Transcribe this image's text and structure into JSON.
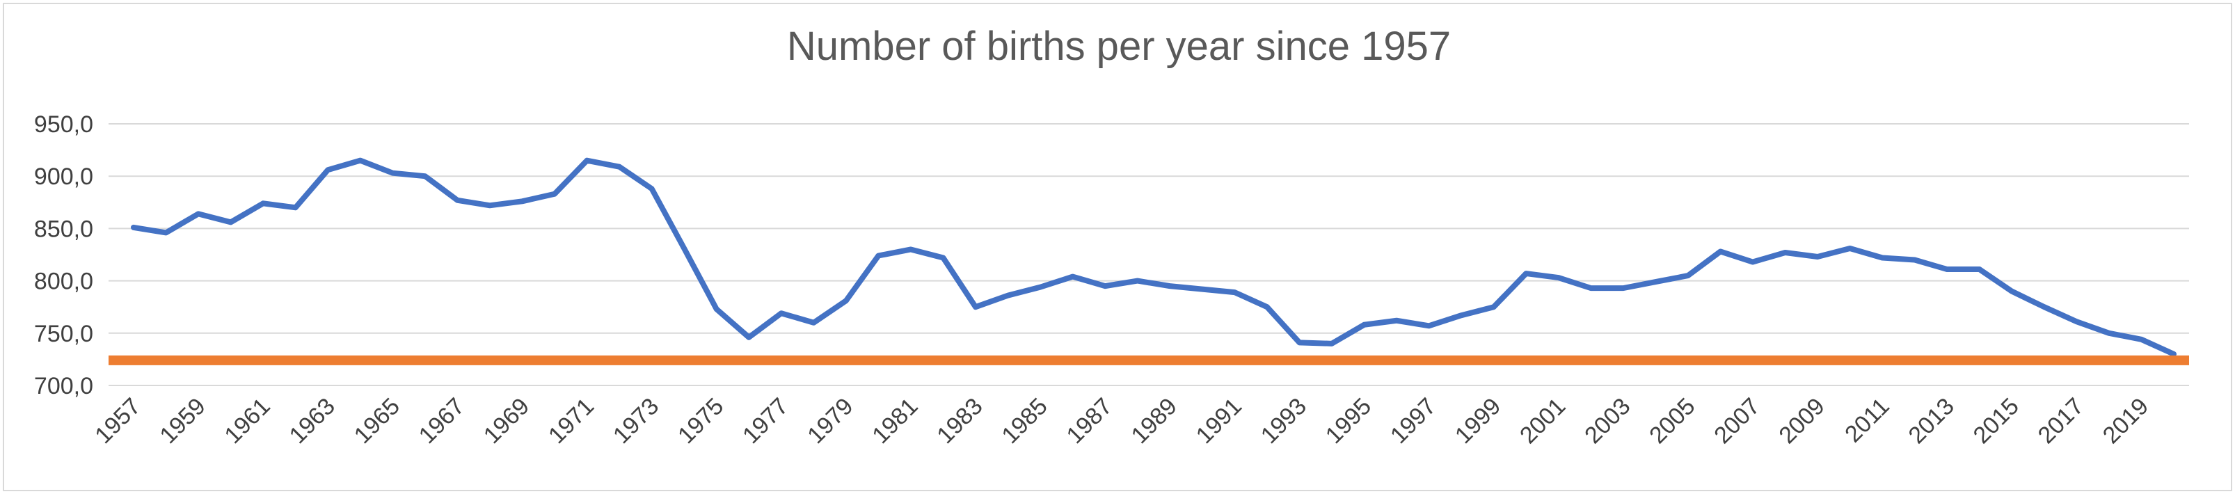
{
  "chart_data": {
    "type": "line",
    "title": "Number of births per year since 1957",
    "xlabel": "",
    "ylabel": "",
    "x_tick_labels": [
      "1957",
      "1959",
      "1961",
      "1963",
      "1965",
      "1967",
      "1969",
      "1971",
      "1973",
      "1975",
      "1977",
      "1979",
      "1981",
      "1983",
      "1985",
      "1987",
      "1989",
      "1991",
      "1993",
      "1995",
      "1997",
      "1999",
      "2001",
      "2003",
      "2005",
      "2007",
      "2009",
      "2011",
      "2013",
      "2015",
      "2017",
      "2019"
    ],
    "y_tick_labels": [
      "700,0",
      "750,0",
      "800,0",
      "850,0",
      "900,0",
      "950,0"
    ],
    "ylim": [
      700,
      950
    ],
    "grid": "horizontal",
    "legend": "none",
    "x": [
      1957,
      1958,
      1959,
      1960,
      1961,
      1962,
      1963,
      1964,
      1965,
      1966,
      1967,
      1968,
      1969,
      1970,
      1971,
      1972,
      1973,
      1974,
      1975,
      1976,
      1977,
      1978,
      1979,
      1980,
      1981,
      1982,
      1983,
      1984,
      1985,
      1986,
      1987,
      1988,
      1989,
      1990,
      1991,
      1992,
      1993,
      1994,
      1995,
      1996,
      1997,
      1998,
      1999,
      2000,
      2001,
      2002,
      2003,
      2004,
      2005,
      2006,
      2007,
      2008,
      2009,
      2010,
      2011,
      2012,
      2013,
      2014,
      2015,
      2016,
      2017,
      2018,
      2019,
      2020
    ],
    "series": [
      {
        "color": "#4472c4",
        "values": [
          851,
          846,
          864,
          856,
          874,
          870,
          906,
          915,
          903,
          900,
          877,
          872,
          876,
          883,
          915,
          909,
          888,
          831,
          773,
          746,
          769,
          760,
          781,
          824,
          830,
          822,
          775,
          786,
          794,
          804,
          795,
          800,
          795,
          792,
          789,
          775,
          741,
          740,
          758,
          762,
          757,
          767,
          775,
          807,
          803,
          793,
          793,
          799,
          805,
          828,
          818,
          827,
          823,
          831,
          822,
          820,
          811,
          811,
          790,
          775,
          761,
          750,
          744,
          730
        ]
      },
      {
        "color": "#ed7d31",
        "values": [
          724,
          724,
          724,
          724,
          724,
          724,
          724,
          724,
          724,
          724,
          724,
          724,
          724,
          724,
          724,
          724,
          724,
          724,
          724,
          724,
          724,
          724,
          724,
          724,
          724,
          724,
          724,
          724,
          724,
          724,
          724,
          724,
          724,
          724,
          724,
          724,
          724,
          724,
          724,
          724,
          724,
          724,
          724,
          724,
          724,
          724,
          724,
          724,
          724,
          724,
          724,
          724,
          724,
          724,
          724,
          724,
          724,
          724,
          724,
          724,
          724,
          724,
          724,
          724
        ]
      }
    ]
  }
}
